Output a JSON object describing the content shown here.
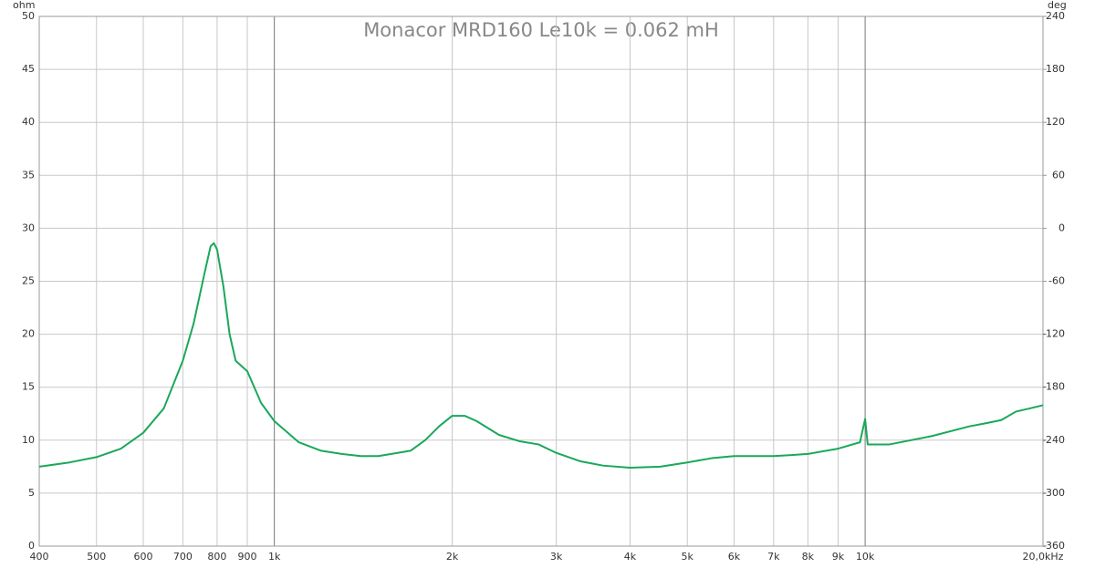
{
  "chart_data": {
    "type": "line",
    "title": "Monacor MRD160  Le10k = 0.062 mH",
    "y_label": "ohm",
    "y2_label": "deg",
    "log_x": true,
    "grid": true,
    "color": "#1aa85a",
    "xlim": [
      400,
      20000
    ],
    "xticks": [
      400,
      500,
      600,
      700,
      800,
      900,
      {
        "value": 1000,
        "label": "1k"
      },
      {
        "value": 2000,
        "label": "2k"
      },
      {
        "value": 3000,
        "label": "3k"
      },
      {
        "value": 4000,
        "label": "4k"
      },
      {
        "value": 5000,
        "label": "5k"
      },
      {
        "value": 6000,
        "label": "6k"
      },
      {
        "value": 7000,
        "label": "7k"
      },
      {
        "value": 8000,
        "label": "8k"
      },
      {
        "value": 9000,
        "label": "9k"
      },
      {
        "value": 10000,
        "label": "10k"
      },
      {
        "value": 20000,
        "label": "20,0kHz"
      }
    ],
    "ylim": [
      0,
      50
    ],
    "yticks": [
      0,
      5,
      10,
      15,
      20,
      25,
      30,
      35,
      40,
      45,
      50
    ],
    "y2lim": [
      -360,
      240
    ],
    "y2ticks": [
      -360,
      -300,
      -240,
      -180,
      -120,
      -60,
      0,
      60,
      120,
      180,
      240
    ],
    "x": [
      400,
      450,
      500,
      550,
      600,
      650,
      700,
      730,
      760,
      780,
      790,
      800,
      820,
      840,
      860,
      880,
      900,
      950,
      1000,
      1100,
      1200,
      1300,
      1400,
      1500,
      1700,
      1800,
      1900,
      2000,
      2100,
      2200,
      2400,
      2600,
      2800,
      3000,
      3300,
      3600,
      4000,
      4500,
      5000,
      5500,
      6000,
      6500,
      7000,
      7500,
      8000,
      9000,
      9800,
      10000,
      10100,
      11000,
      13000,
      15000,
      16000,
      17000,
      18000,
      19000,
      20000
    ],
    "values": [
      7.5,
      7.9,
      8.4,
      9.2,
      10.7,
      13,
      17.5,
      21,
      25.5,
      28.3,
      28.6,
      28,
      24.5,
      20,
      17.5,
      17,
      16.5,
      13.5,
      11.8,
      9.8,
      9,
      8.7,
      8.5,
      8.5,
      9,
      10,
      11.3,
      12.3,
      12.3,
      11.8,
      10.5,
      9.9,
      9.6,
      8.8,
      8,
      7.6,
      7.4,
      7.5,
      7.9,
      8.3,
      8.5,
      8.5,
      8.5,
      8.6,
      8.7,
      9.2,
      9.8,
      12,
      9.6,
      9.6,
      10.4,
      11.3,
      11.6,
      11.9,
      12.7,
      13,
      13.3
    ]
  }
}
